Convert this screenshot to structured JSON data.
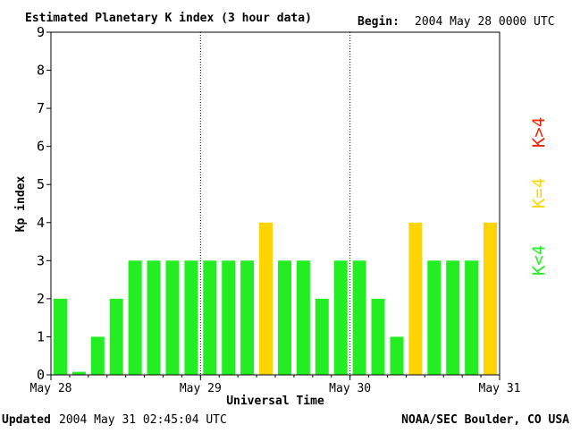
{
  "header": {
    "title": "Estimated Planetary K index (3 hour data)",
    "begin_label": "Begin:",
    "begin_value": "2004 May 28 0000 UTC"
  },
  "footer": {
    "updated_label": "Updated",
    "updated_value": "2004 May 31 02:45:04 UTC",
    "credit": "NOAA/SEC Boulder, CO USA"
  },
  "legend": {
    "high": "K>4",
    "equal": "K=4",
    "low": "K<4"
  },
  "colors": {
    "low": "#22ee22",
    "equal": "#ffd400",
    "high": "#ee2200",
    "axis": "#000000"
  },
  "chart_data": {
    "type": "bar",
    "xlabel": "Universal Time",
    "ylabel": "Kp index",
    "ylim": [
      0,
      9
    ],
    "yticks": [
      "0",
      "1",
      "2",
      "3",
      "4",
      "5",
      "6",
      "7",
      "8",
      "9"
    ],
    "xticks": [
      "May 28",
      "May 29",
      "May 30",
      "May 31"
    ],
    "grid": "dotted vertical lines at day boundaries",
    "legend_position": "right",
    "interval_hours": 3,
    "values": [
      2,
      0,
      1,
      2,
      3,
      3,
      3,
      3,
      3,
      3,
      3,
      4,
      3,
      3,
      2,
      3,
      3,
      2,
      1,
      4,
      3,
      3,
      3,
      4
    ]
  }
}
